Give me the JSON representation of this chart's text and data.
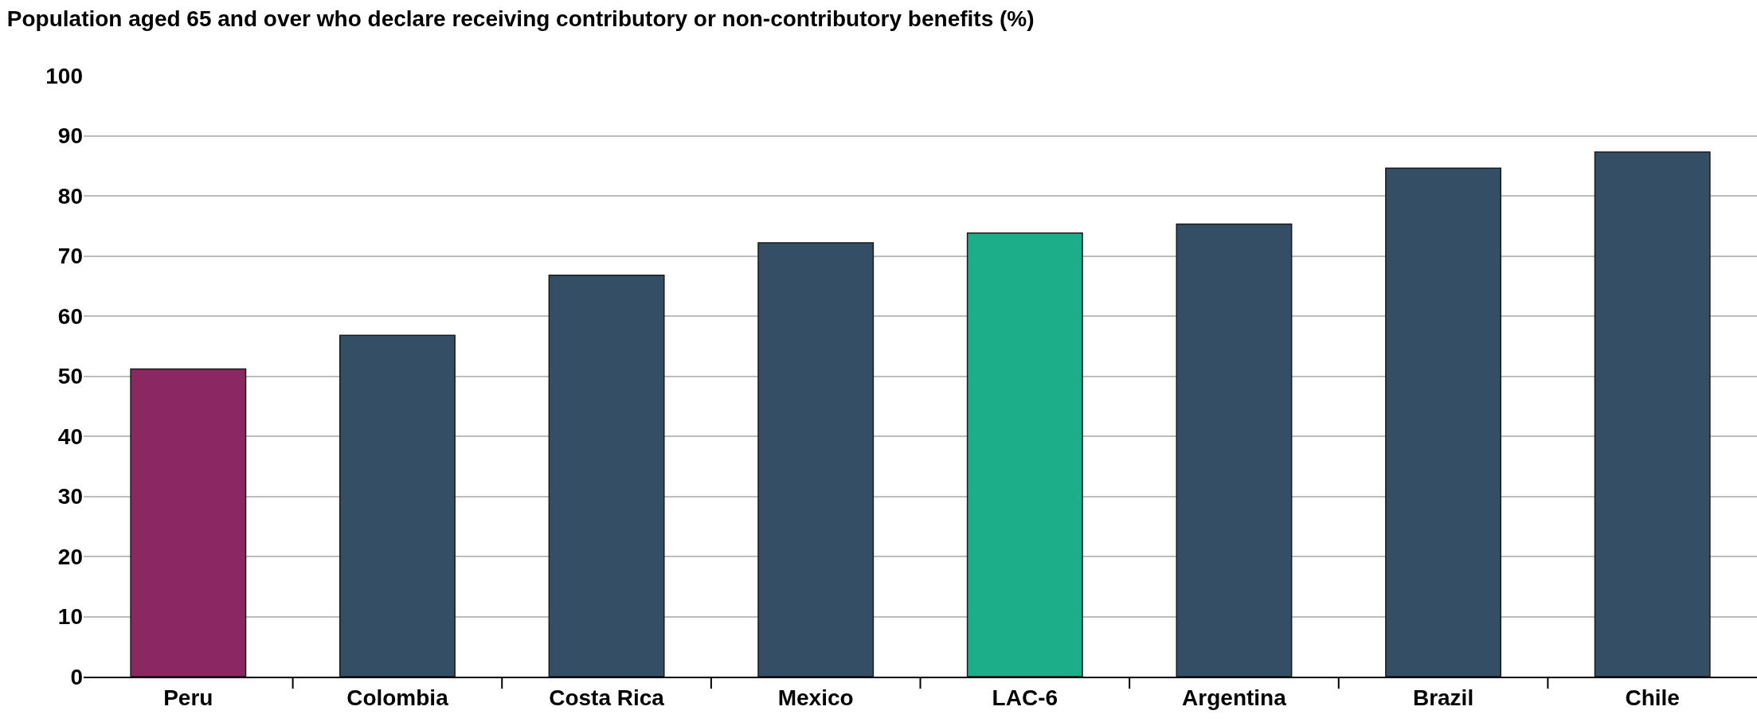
{
  "chart_data": {
    "type": "bar",
    "title": "Population aged 65 and over who declare receiving contributory or non-contributory benefits (%)",
    "categories": [
      "Peru",
      "Colombia",
      "Costa Rica",
      "Mexico",
      "LAC-6",
      "Argentina",
      "Brazil",
      "Chile"
    ],
    "values": [
      51.2,
      56.8,
      66.8,
      72.2,
      73.8,
      75.3,
      84.6,
      87.3
    ],
    "colors": [
      "#8b2762",
      "#344f65",
      "#344f65",
      "#344f65",
      "#1bae88",
      "#344f65",
      "#344f65",
      "#344f65"
    ],
    "ylim": [
      0,
      100
    ],
    "yticks": [
      0,
      10,
      20,
      30,
      40,
      50,
      60,
      70,
      80,
      90,
      100
    ],
    "grid": "y",
    "legend": false
  }
}
